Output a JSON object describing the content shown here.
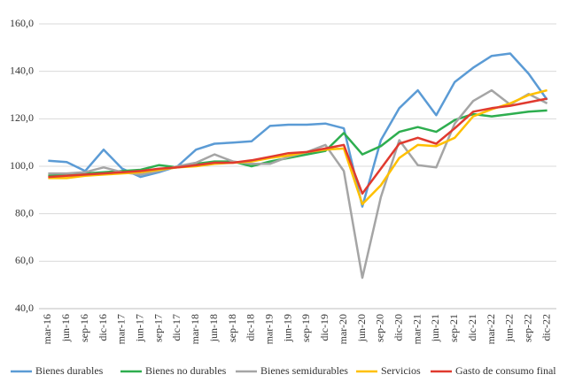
{
  "chart_data": {
    "type": "line",
    "categories": [
      "mar-16",
      "jun-16",
      "sep-16",
      "dic-16",
      "mar-17",
      "jun-17",
      "sep-17",
      "dic-17",
      "mar-18",
      "jun-18",
      "sep-18",
      "dic-18",
      "mar-19",
      "jun-19",
      "sep-19",
      "dic-19",
      "mar-20",
      "jun-20",
      "sep-20",
      "dic-20",
      "mar-21",
      "jun-21",
      "sep-21",
      "dic-21",
      "mar-22",
      "jun-22",
      "sep-22",
      "dic-22"
    ],
    "series": [
      {
        "name": "Bienes durables",
        "color": "#5b9bd5",
        "values": [
          102.3,
          101.8,
          98,
          107,
          99,
          95.5,
          97.5,
          100,
          107,
          109.5,
          110,
          110.5,
          117,
          117.5,
          117.5,
          118,
          116,
          83,
          111,
          124.5,
          132,
          121.5,
          135.5,
          141.5,
          146.5,
          147.5,
          139,
          128
        ]
      },
      {
        "name": "Bienes no durables",
        "color": "#2eae4f",
        "values": [
          96,
          96.5,
          97,
          97.5,
          98,
          98.5,
          100.5,
          99.5,
          101,
          102,
          102,
          100,
          102,
          103.5,
          105,
          106.5,
          114,
          105,
          108.5,
          114.5,
          116.5,
          114.5,
          119.5,
          122,
          121,
          122,
          123,
          123.5
        ]
      },
      {
        "name": "Bienes semidurables",
        "color": "#a5a5a5",
        "values": [
          97,
          97,
          97.5,
          99.5,
          97.5,
          96.5,
          98,
          100,
          101.5,
          105,
          102,
          101,
          101,
          104,
          106,
          109,
          98,
          53,
          87,
          111,
          100.5,
          99.5,
          118,
          127.5,
          132,
          126,
          130.5,
          126.5
        ]
      },
      {
        "name": "Servicios",
        "color": "#ffc000",
        "values": [
          95,
          95,
          96,
          96.5,
          97,
          97.5,
          98.5,
          99.5,
          100,
          101,
          101.5,
          102,
          103.5,
          104.5,
          106,
          107,
          107.5,
          84,
          92,
          103.5,
          109,
          108.5,
          112,
          121,
          124,
          126.5,
          130,
          132
        ]
      },
      {
        "name": "Gasto de consumo final",
        "color": "#e03a2f",
        "values": [
          95.5,
          96,
          96.5,
          97,
          97.5,
          98,
          99,
          99.5,
          100.5,
          101.5,
          101.5,
          102.5,
          104,
          105.5,
          106,
          107.5,
          109,
          88.5,
          99,
          109.5,
          112,
          109.5,
          116,
          123,
          124.5,
          125.5,
          127,
          128.5
        ]
      }
    ],
    "ylim": [
      40,
      160
    ],
    "yticks": [
      {
        "value": 40,
        "label": "40,0"
      },
      {
        "value": 60,
        "label": "60,0"
      },
      {
        "value": 80,
        "label": "80,0"
      },
      {
        "value": 100,
        "label": "100,0"
      },
      {
        "value": 120,
        "label": "120,0"
      },
      {
        "value": 140,
        "label": "140,0"
      },
      {
        "value": 160,
        "label": "160,0"
      }
    ],
    "grid": true,
    "legend": "bottom"
  }
}
